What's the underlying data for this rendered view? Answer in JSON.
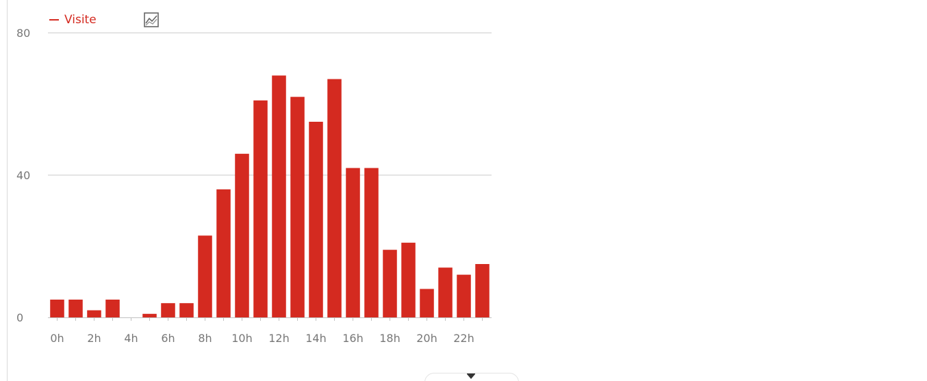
{
  "chart_data": {
    "type": "bar",
    "title": "",
    "xlabel": "",
    "ylabel": "",
    "categories": [
      "0h",
      "1h",
      "2h",
      "3h",
      "4h",
      "5h",
      "6h",
      "7h",
      "8h",
      "9h",
      "10h",
      "11h",
      "12h",
      "13h",
      "14h",
      "15h",
      "16h",
      "17h",
      "18h",
      "19h",
      "20h",
      "21h",
      "22h",
      "23h"
    ],
    "x_tick_labels": [
      "0h",
      "2h",
      "4h",
      "6h",
      "8h",
      "10h",
      "12h",
      "14h",
      "16h",
      "18h",
      "20h",
      "22h"
    ],
    "y_tick_labels": [
      "0",
      "40",
      "80"
    ],
    "y_ticks": [
      0,
      40,
      80
    ],
    "ylim": [
      0,
      80
    ],
    "grid": true,
    "legend_position": "top-left",
    "series": [
      {
        "name": "Visite",
        "color": "#d42a20",
        "values": [
          5,
          5,
          2,
          5,
          0,
          1,
          4,
          4,
          23,
          36,
          46,
          61,
          68,
          62,
          55,
          67,
          42,
          42,
          19,
          21,
          8,
          14,
          12,
          15
        ]
      }
    ]
  },
  "legend": {
    "label": "Visite"
  },
  "toolbar": {
    "chart_type_icon": "line-chart-icon",
    "export_icon": "download-arrow-icon"
  },
  "colors": {
    "bar": "#d42a20",
    "grid": "#c8c8c8",
    "axis_text": "#777777"
  }
}
